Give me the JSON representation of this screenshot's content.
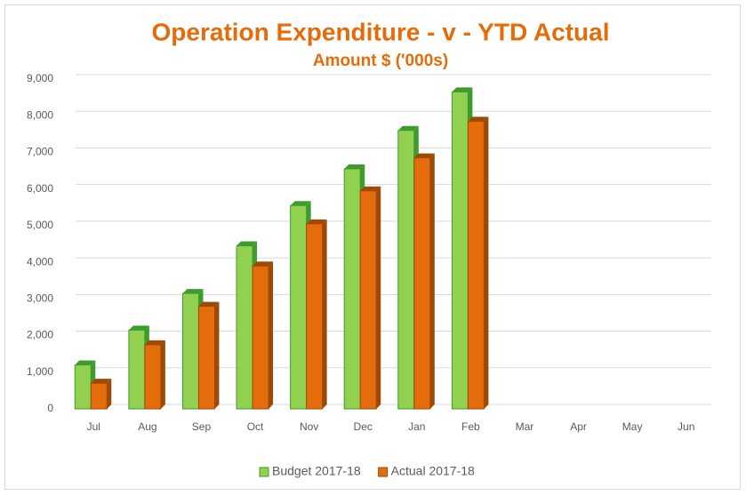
{
  "chart_data": {
    "type": "bar3d",
    "title": "Operation Expenditure - v - YTD Actual",
    "subtitle": "Amount $ ('000s)",
    "categories": [
      "Jul",
      "Aug",
      "Sep",
      "Oct",
      "Nov",
      "Dec",
      "Jan",
      "Feb",
      "Mar",
      "Apr",
      "May",
      "Jun"
    ],
    "series": [
      {
        "name": "Budget 2017-18",
        "color": "#92d050",
        "side_color": "#3e9b2f",
        "values": [
          1200,
          2150,
          3150,
          4450,
          5550,
          6550,
          7600,
          8650,
          null,
          null,
          null,
          null
        ]
      },
      {
        "name": "Actual 2017-18",
        "color": "#e46c0a",
        "side_color": "#9c4a06",
        "values": [
          700,
          1750,
          2800,
          3900,
          5050,
          5950,
          6850,
          7850,
          null,
          null,
          null,
          null
        ]
      }
    ],
    "ylim": [
      0,
      9000
    ],
    "yticks": [
      0,
      {
        "value": 1000,
        "label": "1,000"
      },
      {
        "value": 2000,
        "label": "2,000"
      },
      {
        "value": 3000,
        "label": "3,000"
      },
      {
        "value": 4000,
        "label": "4,000"
      },
      {
        "value": 5000,
        "label": "5,000"
      },
      {
        "value": 6000,
        "label": "6,000"
      },
      {
        "value": 7000,
        "label": "7,000"
      },
      {
        "value": 8000,
        "label": "8,000"
      },
      {
        "value": 9000,
        "label": "9,000"
      }
    ],
    "grid": true,
    "legend": "bottom"
  }
}
